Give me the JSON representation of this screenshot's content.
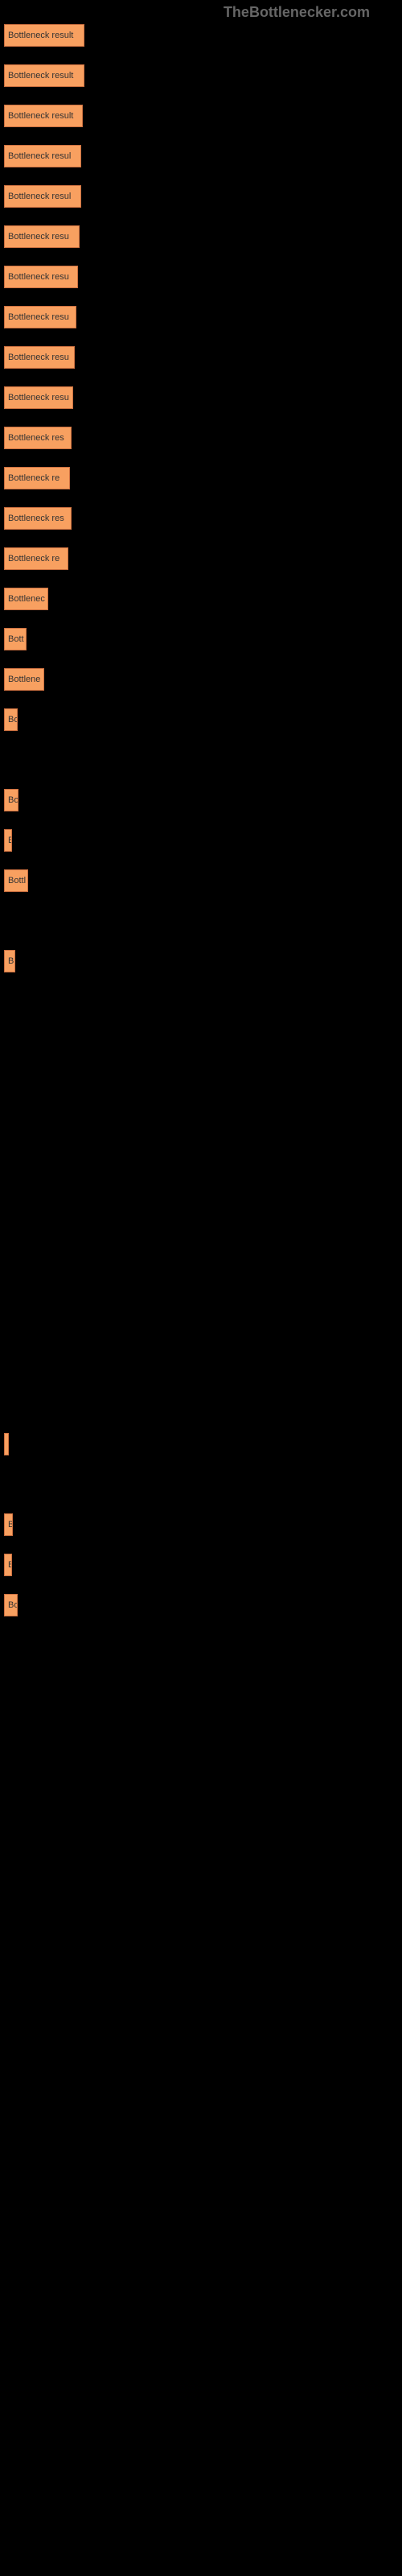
{
  "watermark": "TheBottlenecker.com",
  "chart": {
    "type": "bar",
    "bar_color": "#f8a060",
    "bar_border_color": "#cc7040",
    "background_color": "#000000",
    "text_color": "#333333",
    "watermark_color": "#666666",
    "max_width": 100,
    "bars": [
      {
        "label": "Bottleneck result",
        "width": 100
      },
      {
        "label": "Bottleneck result",
        "width": 100
      },
      {
        "label": "Bottleneck result",
        "width": 98
      },
      {
        "label": "Bottleneck resul",
        "width": 96
      },
      {
        "label": "Bottleneck resul",
        "width": 96
      },
      {
        "label": "Bottleneck resu",
        "width": 94
      },
      {
        "label": "Bottleneck resu",
        "width": 92
      },
      {
        "label": "Bottleneck resu",
        "width": 90
      },
      {
        "label": "Bottleneck resu",
        "width": 88
      },
      {
        "label": "Bottleneck resu",
        "width": 86
      },
      {
        "label": "Bottleneck res",
        "width": 84
      },
      {
        "label": "Bottleneck re",
        "width": 82
      },
      {
        "label": "Bottleneck res",
        "width": 84
      },
      {
        "label": "Bottleneck re",
        "width": 80
      },
      {
        "label": "Bottlenec",
        "width": 55
      },
      {
        "label": "Bott",
        "width": 28
      },
      {
        "label": "Bottlene",
        "width": 50
      },
      {
        "label": "Bo",
        "width": 17
      },
      {
        "label": "",
        "width": 0
      },
      {
        "label": "Bo",
        "width": 18
      },
      {
        "label": "B",
        "width": 10
      },
      {
        "label": "Bottl",
        "width": 30
      },
      {
        "label": "",
        "width": 0
      },
      {
        "label": "B",
        "width": 14
      },
      {
        "label": "",
        "width": 0
      },
      {
        "label": "",
        "width": 0
      },
      {
        "label": "",
        "width": 0
      },
      {
        "label": "",
        "width": 0
      },
      {
        "label": "",
        "width": 0
      },
      {
        "label": "",
        "width": 0
      },
      {
        "label": "",
        "width": 0
      },
      {
        "label": "",
        "width": 0
      },
      {
        "label": "",
        "width": 0
      },
      {
        "label": "",
        "width": 0
      },
      {
        "label": "",
        "width": 0
      },
      {
        "label": "",
        "width": 4
      },
      {
        "label": "",
        "width": 0
      },
      {
        "label": "B",
        "width": 11
      },
      {
        "label": "B",
        "width": 10
      },
      {
        "label": "Bo",
        "width": 17
      }
    ]
  }
}
